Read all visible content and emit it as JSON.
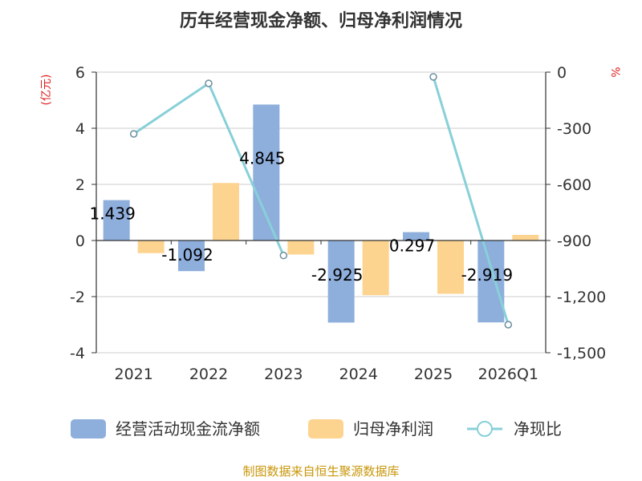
{
  "title": "历年经营现金净额、归母净利润情况",
  "source": "制图数据来自恒生聚源数据库",
  "chart_data": {
    "type": "bar",
    "categories": [
      "2021",
      "2022",
      "2023",
      "2024",
      "2025",
      "2026Q1"
    ],
    "series": [
      {
        "name": "经营活动现金流净额",
        "kind": "bar",
        "axis": "left",
        "color": "#8eaedc",
        "values": [
          1.439,
          -1.092,
          4.845,
          -2.925,
          0.297,
          -2.919
        ],
        "labels": [
          "1.439",
          "-1.092",
          "4.845",
          "-2.925",
          "0.297",
          "-2.919"
        ]
      },
      {
        "name": "归母净利润",
        "kind": "bar",
        "axis": "left",
        "color": "#fdd48f",
        "values": [
          -0.45,
          2.05,
          -0.5,
          -1.95,
          -1.9,
          0.2
        ]
      },
      {
        "name": "净现比",
        "kind": "line",
        "axis": "right",
        "color": "#88d0d8",
        "values": [
          -330,
          -60,
          -980,
          null,
          -25,
          -1350
        ]
      }
    ],
    "left_axis": {
      "unit": "(亿元)",
      "ylim": [
        -4,
        6
      ],
      "ticks": [
        6,
        4,
        2,
        0,
        -2,
        -4
      ],
      "tick_labels": [
        "6",
        "4",
        "2",
        "0",
        "-2",
        "-4"
      ]
    },
    "right_axis": {
      "unit": "%",
      "ylim": [
        -1500,
        0
      ],
      "ticks": [
        0,
        -300,
        -600,
        -900,
        -1200,
        -1500
      ],
      "tick_labels": [
        "0",
        "-300",
        "-600",
        "-900",
        "-1,200",
        "-1,500"
      ]
    },
    "legend": [
      "经营活动现金流净额",
      "归母净利润",
      "净现比"
    ],
    "legend_position": "bottom"
  }
}
